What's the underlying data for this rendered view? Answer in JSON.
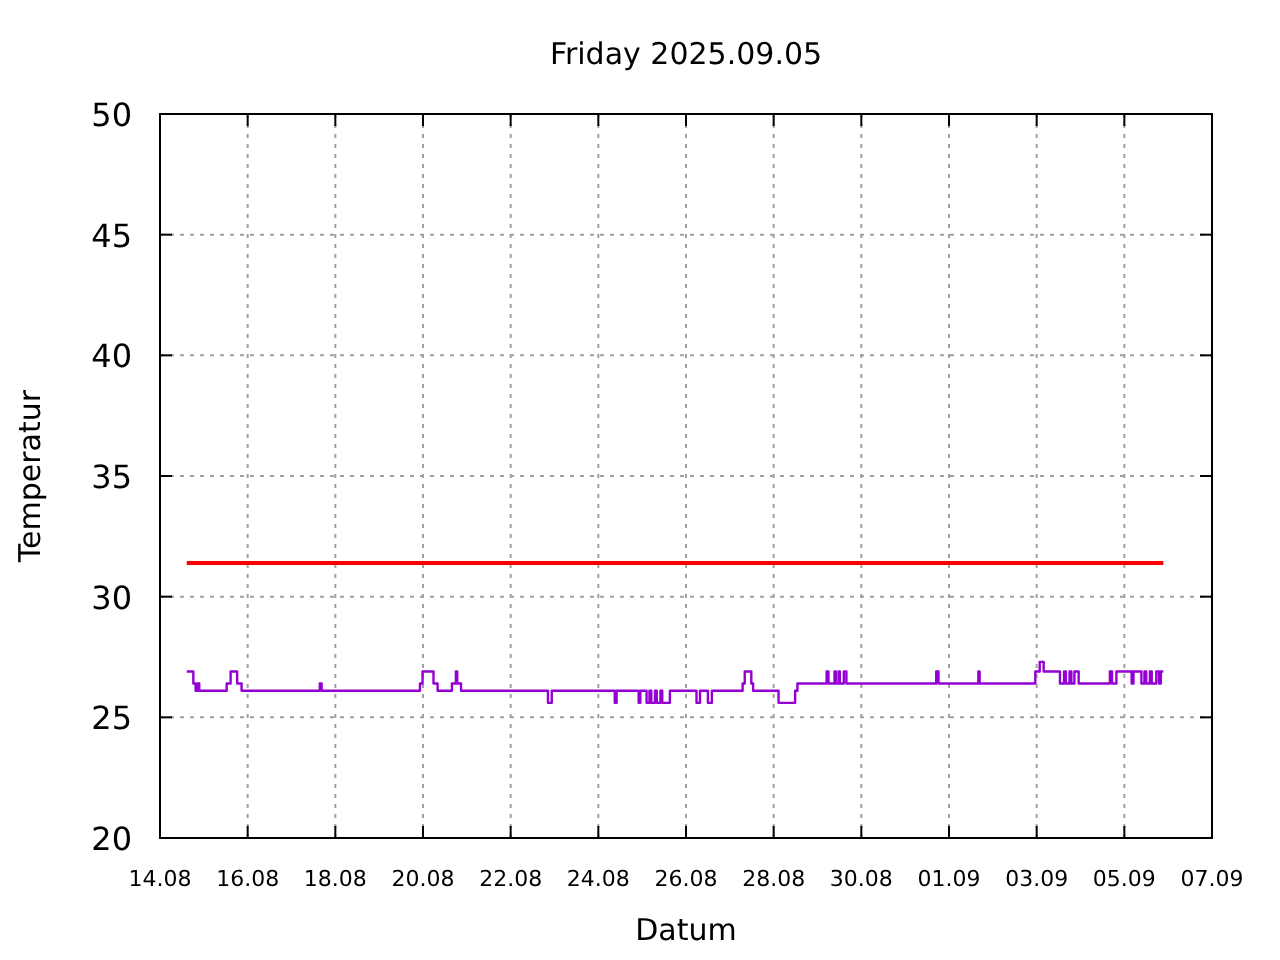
{
  "chart_data": {
    "type": "step",
    "title": "Friday 2025.09.05",
    "xlabel": "Datum",
    "ylabel": "Temperatur",
    "xlim": [
      "2025-08-14",
      "2025-09-07"
    ],
    "xticks": [
      {
        "value": "2025-08-14",
        "label": "14.08"
      },
      {
        "value": "2025-08-16",
        "label": "16.08"
      },
      {
        "value": "2025-08-18",
        "label": "18.08"
      },
      {
        "value": "2025-08-20",
        "label": "20.08"
      },
      {
        "value": "2025-08-22",
        "label": "22.08"
      },
      {
        "value": "2025-08-24",
        "label": "24.08"
      },
      {
        "value": "2025-08-26",
        "label": "26.08"
      },
      {
        "value": "2025-08-28",
        "label": "28.08"
      },
      {
        "value": "2025-08-30",
        "label": "30.08"
      },
      {
        "value": "2025-09-01",
        "label": "01.09"
      },
      {
        "value": "2025-09-03",
        "label": "03.09"
      },
      {
        "value": "2025-09-05",
        "label": "05.09"
      },
      {
        "value": "2025-09-07",
        "label": "07.09"
      }
    ],
    "ylim": [
      20,
      50
    ],
    "yticks": [
      20,
      25,
      30,
      35,
      40,
      45,
      50
    ],
    "grid": true,
    "series": [
      {
        "color": "#9400d3",
        "x": [
          "2025-08-14T14:40",
          "2025-08-14T18:15",
          "2025-08-14T19:30",
          "2025-08-14T20:30",
          "2025-08-14T21:30",
          "2025-08-15T12:30",
          "2025-08-15T14:40",
          "2025-08-15T18:15",
          "2025-08-15T20:40",
          "2025-08-17T15:30",
          "2025-08-17T16:30",
          "2025-08-19T22:20",
          "2025-08-19T23:45",
          "2025-08-20T05:45",
          "2025-08-20T08:00",
          "2025-08-20T15:50",
          "2025-08-20T18:00",
          "2025-08-20T18:45",
          "2025-08-20T20:50",
          "2025-08-22T20:25",
          "2025-08-22T22:30",
          "2025-08-24T09:00",
          "2025-08-24T10:00",
          "2025-08-24T22:05",
          "2025-08-24T23:00",
          "2025-08-25T02:25",
          "2025-08-25T04:00",
          "2025-08-25T05:00",
          "2025-08-25T07:00",
          "2025-08-25T08:00",
          "2025-08-25T10:00",
          "2025-08-25T11:00",
          "2025-08-25T15:10",
          "2025-08-26T05:45",
          "2025-08-26T07:40",
          "2025-08-26T12:00",
          "2025-08-26T14:10",
          "2025-08-27T07:00",
          "2025-08-27T08:10",
          "2025-08-27T11:45",
          "2025-08-27T12:45",
          "2025-08-28T02:40",
          "2025-08-28T11:45",
          "2025-08-28T13:00",
          "2025-08-29T05:00",
          "2025-08-29T06:00",
          "2025-08-29T09:20",
          "2025-08-29T10:00",
          "2025-08-29T11:30",
          "2025-08-29T12:15",
          "2025-08-29T14:25",
          "2025-08-29T15:50",
          "2025-08-31T17:00",
          "2025-08-31T18:15",
          "2025-09-01T16:05",
          "2025-09-01T16:45",
          "2025-09-02T23:15",
          "2025-09-03T01:40",
          "2025-09-03T03:50",
          "2025-09-03T12:45",
          "2025-09-03T15:00",
          "2025-09-03T16:00",
          "2025-09-03T18:00",
          "2025-09-03T19:00",
          "2025-09-03T20:40",
          "2025-09-03T23:00",
          "2025-09-04T16:05",
          "2025-09-04T17:15",
          "2025-09-04T19:40",
          "2025-09-05T04:00",
          "2025-09-05T05:00",
          "2025-09-05T09:20",
          "2025-09-05T11:00",
          "2025-09-05T12:00",
          "2025-09-05T14:00",
          "2025-09-05T15:00",
          "2025-09-05T17:30",
          "2025-09-05T19:00",
          "2025-09-05T20:00",
          "2025-09-05T21:20"
        ],
        "values": [
          26.9,
          26.4,
          26.1,
          26.4,
          26.1,
          26.4,
          26.9,
          26.4,
          26.1,
          26.4,
          26.1,
          26.4,
          26.9,
          26.4,
          26.1,
          26.4,
          26.9,
          26.4,
          26.1,
          25.6,
          26.1,
          25.6,
          26.1,
          25.6,
          26.1,
          25.6,
          26.1,
          25.6,
          26.1,
          25.6,
          26.1,
          25.6,
          26.1,
          25.6,
          26.1,
          25.6,
          26.1,
          26.4,
          26.9,
          26.4,
          26.1,
          25.6,
          26.1,
          26.4,
          26.9,
          26.4,
          26.9,
          26.4,
          26.9,
          26.4,
          26.9,
          26.4,
          26.9,
          26.4,
          26.9,
          26.4,
          26.9,
          27.3,
          26.9,
          26.4,
          26.9,
          26.4,
          26.9,
          26.4,
          26.9,
          26.4,
          26.9,
          26.4,
          26.9,
          26.4,
          26.9,
          26.4,
          26.9,
          26.4,
          26.9,
          26.4,
          26.9,
          26.4,
          26.9,
          26.9
        ]
      },
      {
        "type": "line",
        "color": "#ff0000",
        "x": [
          "2025-08-14T14:40",
          "2025-09-05T21:20"
        ],
        "values": [
          31.4,
          31.4
        ]
      }
    ]
  }
}
